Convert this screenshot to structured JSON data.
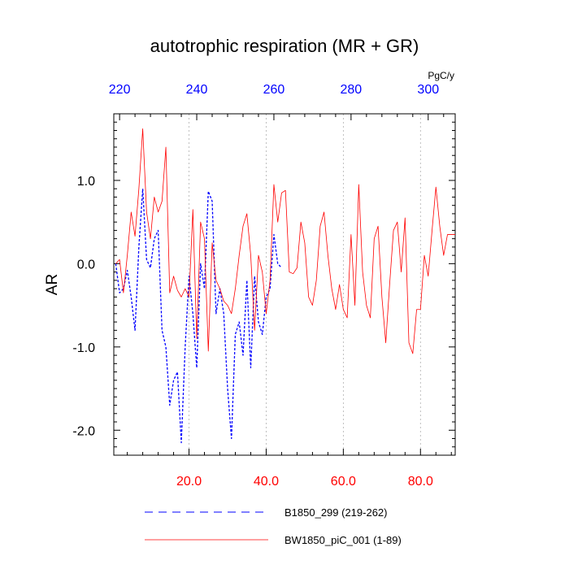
{
  "chart_data": {
    "type": "line",
    "title": "autotrophic respiration (MR + GR)",
    "ylabel": "AR",
    "top_axis_units": "PgC/y",
    "xlim": [
      0.5,
      89
    ],
    "ylim": [
      -2.3,
      1.8
    ],
    "top_axis_xlim": [
      218.5,
      307
    ],
    "bottom_ticks": [
      {
        "value": 20,
        "label": "20.0"
      },
      {
        "value": 40,
        "label": "40.0"
      },
      {
        "value": 60,
        "label": "60.0"
      },
      {
        "value": 80,
        "label": "80.0"
      }
    ],
    "top_ticks": [
      {
        "value": 220,
        "label": "220"
      },
      {
        "value": 240,
        "label": "240"
      },
      {
        "value": 260,
        "label": "260"
      },
      {
        "value": 280,
        "label": "280"
      },
      {
        "value": 300,
        "label": "300"
      }
    ],
    "left_ticks": [
      {
        "value": 1.0,
        "label": "1.0"
      },
      {
        "value": 0.0,
        "label": "0.0"
      },
      {
        "value": -1.0,
        "label": "-1.0"
      },
      {
        "value": -2.0,
        "label": "-2.0"
      }
    ],
    "grid": "vertical dotted lines at bottom-axis major ticks",
    "legend_position": "bottom",
    "series": [
      {
        "name": "B1850_299 (219-262)",
        "color": "#0000ff",
        "style": "dashed",
        "axis": "top",
        "x": [
          219,
          220,
          221,
          222,
          223,
          224,
          225,
          226,
          227,
          228,
          229,
          230,
          231,
          232,
          233,
          234,
          235,
          236,
          237,
          238,
          239,
          240,
          241,
          242,
          243,
          244,
          245,
          246,
          247,
          248,
          249,
          250,
          251,
          252,
          253,
          254,
          255,
          256,
          257,
          258,
          259,
          260,
          261,
          262
        ],
        "y": [
          0.0,
          -0.35,
          -0.3,
          -0.08,
          -0.4,
          -0.8,
          0.2,
          0.9,
          0.05,
          -0.05,
          0.3,
          0.4,
          -0.8,
          -1.0,
          -1.7,
          -1.4,
          -1.3,
          -2.15,
          -1.0,
          -0.15,
          -0.6,
          -1.25,
          0.0,
          -0.3,
          0.87,
          0.75,
          -0.6,
          -0.3,
          -0.6,
          -1.5,
          -2.1,
          -0.85,
          -0.7,
          -1.1,
          -0.2,
          -1.25,
          -0.15,
          -0.7,
          -0.85,
          -0.4,
          -0.3,
          0.35,
          0.0,
          -0.05
        ]
      },
      {
        "name": "BW1850_piC_001 (1-89)",
        "color": "#ff0000",
        "style": "solid",
        "axis": "bottom",
        "x": [
          1,
          2,
          3,
          4,
          5,
          6,
          7,
          8,
          9,
          10,
          11,
          12,
          13,
          14,
          15,
          16,
          17,
          18,
          19,
          20,
          21,
          22,
          23,
          24,
          25,
          26,
          27,
          28,
          29,
          30,
          31,
          32,
          33,
          34,
          35,
          36,
          37,
          38,
          39,
          40,
          41,
          42,
          43,
          44,
          45,
          46,
          47,
          48,
          49,
          50,
          51,
          52,
          53,
          54,
          55,
          56,
          57,
          58,
          59,
          60,
          61,
          62,
          63,
          64,
          65,
          66,
          67,
          68,
          69,
          70,
          71,
          72,
          73,
          74,
          75,
          76,
          77,
          78,
          79,
          80,
          81,
          82,
          83,
          84,
          85,
          86,
          87,
          88,
          89
        ],
        "y": [
          0.0,
          0.05,
          -0.35,
          0.1,
          0.62,
          0.33,
          0.9,
          1.62,
          0.62,
          0.3,
          0.8,
          0.62,
          0.75,
          1.4,
          -0.35,
          -0.15,
          -0.32,
          -0.4,
          -0.3,
          -0.4,
          0.65,
          -0.9,
          0.5,
          0.3,
          -1.05,
          0.25,
          -0.2,
          -0.3,
          -0.45,
          -0.5,
          -0.6,
          -0.3,
          0.1,
          0.45,
          0.6,
          0.1,
          -0.8,
          0.1,
          -0.1,
          -0.6,
          -0.2,
          0.95,
          0.5,
          0.85,
          0.88,
          -0.1,
          -0.12,
          -0.05,
          0.5,
          0.25,
          -0.4,
          -0.5,
          -0.2,
          0.45,
          0.62,
          0.1,
          -0.3,
          -0.55,
          -0.25,
          -0.55,
          -0.65,
          0.35,
          -0.5,
          0.95,
          -0.1,
          -0.5,
          -0.65,
          0.3,
          0.45,
          -0.4,
          -0.95,
          -0.25,
          0.4,
          0.5,
          -0.1,
          0.55,
          -0.95,
          -1.08,
          -0.55,
          -0.55,
          0.1,
          -0.15,
          0.4,
          0.92,
          0.45,
          0.1,
          0.35,
          0.35,
          0.35
        ]
      }
    ]
  }
}
